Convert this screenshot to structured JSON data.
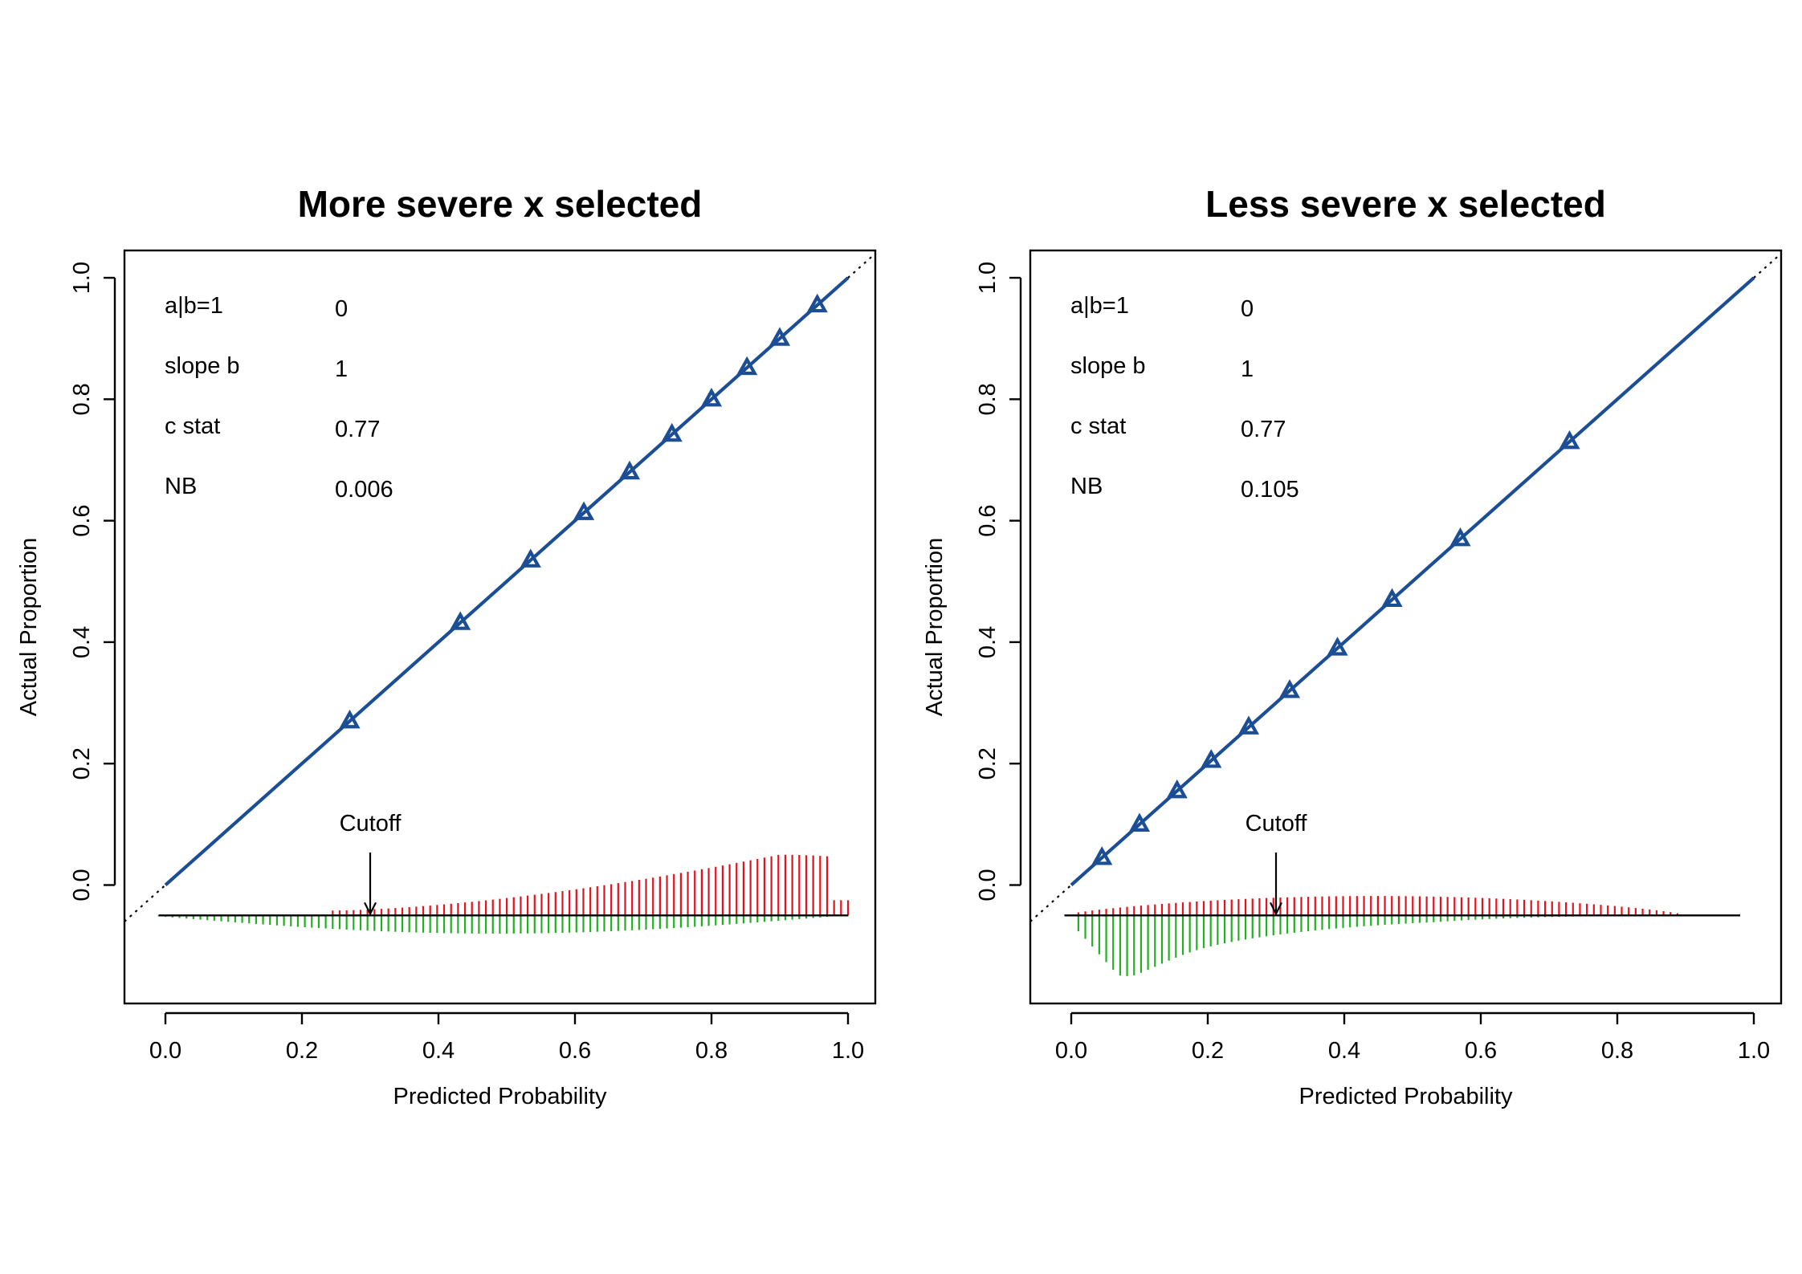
{
  "chart_data": [
    {
      "type": "line",
      "title": "More severe x selected",
      "xlabel": "Predicted Probability",
      "ylabel": "Actual Proportion",
      "xlim": [
        -0.06,
        1.04
      ],
      "ylim": [
        -0.195,
        1.045
      ],
      "xticks": [
        "0.0",
        "0.2",
        "0.4",
        "0.6",
        "0.8",
        "1.0"
      ],
      "yticks": [
        "0.0",
        "0.2",
        "0.4",
        "0.6",
        "0.8",
        "1.0"
      ],
      "stats": [
        {
          "label": "a|b=1",
          "value": "0"
        },
        {
          "label": "slope b",
          "value": "1"
        },
        {
          "label": "c stat",
          "value": "0.77"
        },
        {
          "label": "NB",
          "value": "0.006"
        }
      ],
      "cutoff": {
        "label": "Cutoff",
        "x": 0.3
      },
      "reference_line": {
        "x": [
          -0.06,
          1.04
        ],
        "y": [
          -0.06,
          1.04
        ]
      },
      "calibration_line": {
        "x": [
          0.0,
          1.0
        ],
        "y": [
          0.0,
          1.0
        ]
      },
      "grouped_points": {
        "x": [
          0.27,
          0.432,
          0.535,
          0.613,
          0.68,
          0.742,
          0.8,
          0.852,
          0.9,
          0.955
        ],
        "y": [
          0.27,
          0.432,
          0.535,
          0.613,
          0.68,
          0.742,
          0.8,
          0.852,
          0.9,
          0.955
        ]
      },
      "spike_histogram": {
        "baseline_y": -0.05,
        "x_range": [
          -0.01,
          1.0
        ],
        "count": 100,
        "positive_peak": 0.1,
        "negative_peak": 0.03,
        "positive_color": "#e4121c",
        "negative_color": "#22b022"
      },
      "colors": {
        "calibration": "#1b4e94"
      }
    },
    {
      "type": "line",
      "title": "Less severe x selected",
      "xlabel": "Predicted Probability",
      "ylabel": "Actual Proportion",
      "xlim": [
        -0.06,
        1.04
      ],
      "ylim": [
        -0.195,
        1.045
      ],
      "xticks": [
        "0.0",
        "0.2",
        "0.4",
        "0.6",
        "0.8",
        "1.0"
      ],
      "yticks": [
        "0.0",
        "0.2",
        "0.4",
        "0.6",
        "0.8",
        "1.0"
      ],
      "stats": [
        {
          "label": "a|b=1",
          "value": "0"
        },
        {
          "label": "slope b",
          "value": "1"
        },
        {
          "label": "c stat",
          "value": "0.77"
        },
        {
          "label": "NB",
          "value": "0.105"
        }
      ],
      "cutoff": {
        "label": "Cutoff",
        "x": 0.3
      },
      "reference_line": {
        "x": [
          -0.06,
          1.04
        ],
        "y": [
          -0.06,
          1.04
        ]
      },
      "calibration_line": {
        "x": [
          0.0,
          1.0
        ],
        "y": [
          0.0,
          1.0
        ]
      },
      "grouped_points": {
        "x": [
          0.045,
          0.1,
          0.155,
          0.205,
          0.26,
          0.32,
          0.39,
          0.47,
          0.57,
          0.73
        ],
        "y": [
          0.045,
          0.1,
          0.155,
          0.205,
          0.26,
          0.32,
          0.39,
          0.47,
          0.57,
          0.73
        ]
      },
      "spike_histogram": {
        "baseline_y": -0.05,
        "x_range": [
          -0.01,
          0.98
        ],
        "count": 98,
        "positive_peak": 0.032,
        "negative_peak": 0.1,
        "positive_color": "#e4121c",
        "negative_color": "#22b022"
      },
      "colors": {
        "calibration": "#1b4e94"
      }
    }
  ]
}
